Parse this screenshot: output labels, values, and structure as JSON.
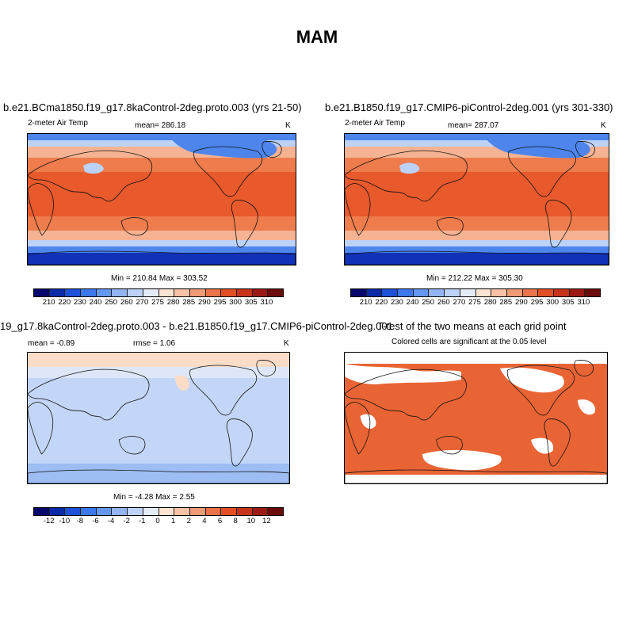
{
  "title": "MAM",
  "panels": [
    {
      "title": "b.e21.BCma1850.f19_g17.8kaControl-2deg.proto.003 (yrs 21-50)",
      "left_label": "2-meter Air Temp",
      "center_label": "mean= 286.18",
      "units": "K",
      "minmax": "Min = 210.84 Max = 303.52"
    },
    {
      "title": "b.e21.B1850.f19_g17.CMIP6-piControl-2deg.001 (yrs 301-330)",
      "left_label": "2-meter Air Temp",
      "center_label": "mean= 287.07",
      "units": "K",
      "minmax": "Min = 212.22 Max = 305.30"
    },
    {
      "title": "19_g17.8kaControl-2deg.proto.003 - b.e21.B1850.f19_g17.CMIP6-piControl-2deg.001",
      "left_label": "mean =  -0.89",
      "center_label": "rmse =   1.06",
      "units": "K",
      "minmax": "Min =  -4.28 Max =   2.55"
    },
    {
      "title": "T-test of the two means at each grid point",
      "subtitle": "Colored cells are significant at the 0.05 level"
    }
  ],
  "temp_colorbar": {
    "labels": [
      "210",
      "220",
      "230",
      "240",
      "250",
      "260",
      "270",
      "275",
      "280",
      "285",
      "290",
      "295",
      "300",
      "305",
      "310"
    ],
    "colors": [
      "#08076b",
      "#0a2aa8",
      "#1f50d8",
      "#3c78eb",
      "#6497f2",
      "#93b5f5",
      "#bdd2f8",
      "#e4ecf8",
      "#fde3d2",
      "#f8c2a6",
      "#f19a76",
      "#ea734a",
      "#e24f25",
      "#c7321b",
      "#9d1a14",
      "#6b0a0a"
    ]
  },
  "diff_colorbar": {
    "labels": [
      "-12",
      "-10",
      "-8",
      "-6",
      "-4",
      "-2",
      "-1",
      "0",
      "1",
      "2",
      "4",
      "6",
      "8",
      "10",
      "12"
    ],
    "colors": [
      "#08076b",
      "#0a2aa8",
      "#1f50d8",
      "#3c78eb",
      "#6497f2",
      "#93b5f5",
      "#bdd2f8",
      "#e4ecf8",
      "#fde3d2",
      "#f8c2a6",
      "#f19a76",
      "#ea734a",
      "#e24f25",
      "#c7321b",
      "#9d1a14",
      "#6b0a0a"
    ]
  },
  "map_colors": {
    "tropics": "#e8592c",
    "subtropics": "#ee7c4c",
    "midlat": "#f6b393",
    "cool": "#bcd2f8",
    "cold": "#4d85ec",
    "polar": "#1132b8",
    "diff_bg": "#c3d6f7",
    "diff_light": "#dde7f8",
    "diff_warm": "#fbdcc7",
    "diff_blue": "#9dbdf3",
    "ttest": "#e86434",
    "coast": "#111111"
  }
}
